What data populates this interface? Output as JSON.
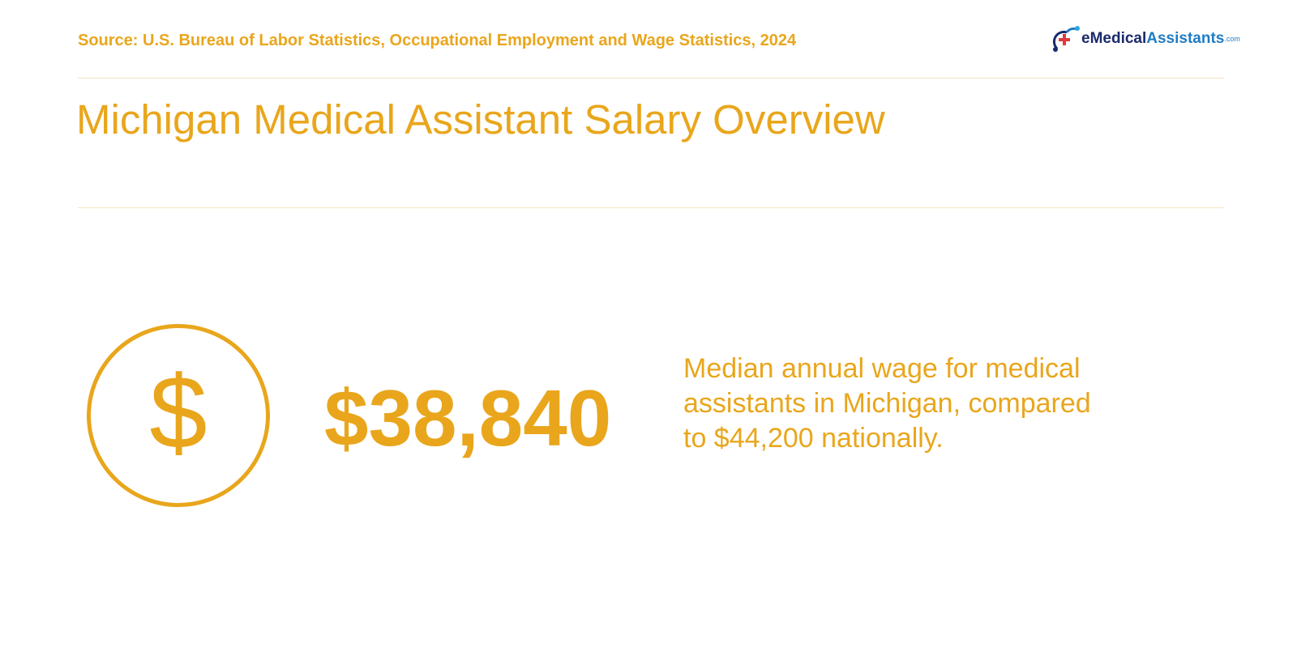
{
  "header": {
    "source": "Source: U.S. Bureau of Labor Statistics, Occupational Employment and Wage Statistics, 2024",
    "logo": {
      "part1": "eMedical",
      "part2": "Assistants",
      "part3": ".com"
    }
  },
  "title": "Michigan Medical Assistant Salary Overview",
  "stat": {
    "icon": "$",
    "value": "$38,840",
    "description": "Median annual wage for medical assistants in Michigan, compared to $44,200 nationally."
  }
}
